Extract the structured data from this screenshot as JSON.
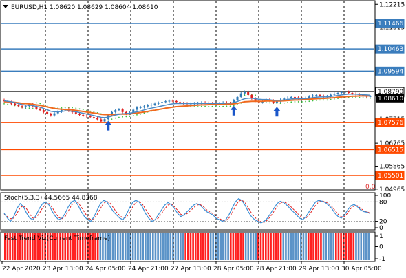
{
  "header": {
    "symbol_line": "EURUSD,H1  1.08620 1.08629 1.08604 1.08610"
  },
  "colors": {
    "background": "#ffffff",
    "frame": "#000000",
    "grid": "#000000",
    "candle_up": "#2f7ab8",
    "candle_down": "#e02020",
    "ma_fast": "#4b89c5",
    "ma_slow": "#f06a1e",
    "psar": "#3cc03c",
    "arrow": "#1a56c9",
    "level_blue": "#3a7dbd",
    "level_orange": "#ff4a00",
    "current_price": "#000000",
    "stoch_main": "#3b8fd6",
    "stoch_signal": "#e02020",
    "trend_up": "#5b93c8",
    "trend_down": "#ff2020"
  },
  "price_axis": {
    "ticks": [
      "1.12215",
      "1.11315",
      "1.10415",
      "1.09515",
      "1.08615",
      "1.07715",
      "1.06765",
      "1.05865",
      "1.04965"
    ],
    "tick_values": [
      1.12215,
      1.11315,
      1.10415,
      1.09515,
      1.08615,
      1.07715,
      1.06765,
      1.05865,
      1.04965
    ],
    "range": [
      1.0496,
      1.1233
    ],
    "levels": [
      {
        "label": "1.11466",
        "value": 1.11466,
        "kind": "blue"
      },
      {
        "label": "1.10463",
        "value": 1.10463,
        "kind": "blue"
      },
      {
        "label": "1.09594",
        "value": 1.09594,
        "kind": "blue"
      },
      {
        "label": "1.08790",
        "value": 1.0879,
        "kind": "black"
      },
      {
        "label": "1.07576",
        "value": 1.07576,
        "kind": "orange"
      },
      {
        "label": "1.06515",
        "value": 1.06515,
        "kind": "orange"
      },
      {
        "label": "1.05501",
        "value": 1.05501,
        "kind": "orange"
      }
    ],
    "current_price": {
      "label": "1.08610",
      "value": 1.0861
    }
  },
  "corner_mark": "0.0",
  "stoch": {
    "title": "Stoch(5,3,3) 44.5665 44.8368",
    "ticks": [
      "100",
      "80",
      "20",
      "0"
    ],
    "tick_values": [
      100,
      80,
      20,
      0
    ],
    "main": [
      45,
      30,
      20,
      35,
      60,
      75,
      65,
      45,
      30,
      25,
      40,
      60,
      75,
      80,
      70,
      50,
      35,
      25,
      30,
      45,
      65,
      80,
      85,
      70,
      50,
      35,
      25,
      20,
      35,
      55,
      75,
      85,
      80,
      65,
      50,
      40,
      30,
      25,
      40,
      60,
      78,
      85,
      80,
      65,
      45,
      30,
      20,
      25,
      40,
      55,
      70,
      78,
      72,
      60,
      45,
      35,
      40,
      50,
      60,
      70,
      75,
      70,
      60,
      50,
      45,
      40,
      30,
      25,
      20,
      25,
      40,
      60,
      80,
      90,
      85,
      70,
      50,
      35,
      25,
      20,
      15,
      20,
      30,
      45,
      60,
      75,
      82,
      78,
      70,
      60,
      50,
      40,
      30,
      25,
      35,
      50,
      65,
      80,
      85,
      82,
      78,
      70,
      60,
      45,
      35,
      30,
      40,
      55,
      68,
      72,
      65,
      55,
      50,
      48,
      44
    ],
    "signal": [
      42,
      35,
      28,
      30,
      45,
      62,
      68,
      58,
      42,
      30,
      32,
      45,
      62,
      74,
      75,
      62,
      46,
      32,
      28,
      35,
      52,
      70,
      80,
      78,
      64,
      48,
      34,
      25,
      28,
      42,
      60,
      76,
      82,
      76,
      62,
      48,
      38,
      30,
      32,
      45,
      64,
      78,
      82,
      74,
      58,
      42,
      28,
      24,
      30,
      44,
      58,
      70,
      74,
      66,
      54,
      42,
      38,
      44,
      52,
      62,
      70,
      72,
      66,
      56,
      49,
      44,
      36,
      29,
      23,
      22,
      30,
      46,
      66,
      82,
      86,
      78,
      62,
      46,
      33,
      24,
      18,
      17,
      24,
      36,
      50,
      65,
      76,
      80,
      76,
      68,
      58,
      48,
      38,
      30,
      30,
      40,
      54,
      70,
      80,
      83,
      80,
      75,
      66,
      54,
      42,
      34,
      35,
      46,
      60,
      68,
      68,
      60,
      53,
      50,
      45
    ]
  },
  "trend_panel": {
    "title": "Fast Trend Viz(Current Timeframe)",
    "ticks": [
      "1",
      "0",
      "-1"
    ],
    "tick_values": [
      1,
      0,
      -1
    ],
    "runs": [
      {
        "color": "down",
        "count": 38
      },
      {
        "color": "up",
        "count": 20
      },
      {
        "color": "up2",
        "count": 14
      },
      {
        "color": "down",
        "count": 10
      },
      {
        "color": "up",
        "count": 8
      },
      {
        "color": "down",
        "count": 6
      },
      {
        "color": "up",
        "count": 5
      },
      {
        "color": "down",
        "count": 10
      },
      {
        "color": "up",
        "count": 4
      },
      {
        "color": "up2",
        "count": 6
      },
      {
        "color": "down",
        "count": 6
      },
      {
        "color": "up",
        "count": 5
      },
      {
        "color": "down",
        "count": 8
      },
      {
        "color": "up",
        "count": 6
      }
    ]
  },
  "time_axis": {
    "labels": [
      "22 Apr 2020",
      "23 Apr 13:00",
      "24 Apr 05:00",
      "24 Apr 21:00",
      "27 Apr 13:00",
      "28 Apr 05:00",
      "28 Apr 21:00",
      "29 Apr 13:00",
      "30 Apr 05:00"
    ]
  },
  "chart_data": {
    "type": "candlestick",
    "symbol": "EURUSD",
    "timeframe": "H1",
    "ohlc_last": {
      "open": 1.0862,
      "high": 1.08629,
      "low": 1.08604,
      "close": 1.0861
    },
    "closes": [
      1.0842,
      1.0838,
      1.0832,
      1.0828,
      1.0822,
      1.0818,
      1.0822,
      1.0829,
      1.0821,
      1.0812,
      1.0806,
      1.0799,
      1.0791,
      1.0786,
      1.0794,
      1.0801,
      1.0806,
      1.0811,
      1.0804,
      1.0798,
      1.0793,
      1.0788,
      1.0785,
      1.0782,
      1.0779,
      1.0776,
      1.077,
      1.0762,
      1.0771,
      1.0786,
      1.0799,
      1.0806,
      1.0809,
      1.0799,
      1.0792,
      1.0797,
      1.0808,
      1.0817,
      1.0818,
      1.0821,
      1.0825,
      1.0828,
      1.0832,
      1.0835,
      1.0838,
      1.0841,
      1.0843,
      1.0842,
      1.0838,
      1.0834,
      1.0833,
      1.0831,
      1.0832,
      1.0833,
      1.0834,
      1.0836,
      1.0835,
      1.0833,
      1.0832,
      1.0831,
      1.0833,
      1.0836,
      1.0834,
      1.0832,
      1.0845,
      1.0858,
      1.0872,
      1.0878,
      1.0866,
      1.0852,
      1.0843,
      1.0837,
      1.0842,
      1.0848,
      1.0844,
      1.0836,
      1.0841,
      1.0847,
      1.0852,
      1.0855,
      1.0858,
      1.0856,
      1.0852,
      1.0849,
      1.0854,
      1.086,
      1.0864,
      1.0866,
      1.0862,
      1.0858,
      1.0861,
      1.0867,
      1.0871,
      1.0874,
      1.0877,
      1.0878,
      1.0874,
      1.0871,
      1.0868,
      1.0866,
      1.0862,
      1.0861,
      1.0861
    ],
    "ma_fast": [
      1.0843,
      1.0841,
      1.0839,
      1.0836,
      1.0832,
      1.0828,
      1.0826,
      1.0826,
      1.0824,
      1.0821,
      1.0818,
      1.0813,
      1.0808,
      1.0802,
      1.08,
      1.08,
      1.0801,
      1.0803,
      1.0803,
      1.0802,
      1.08,
      1.0797,
      1.0794,
      1.0791,
      1.0788,
      1.0785,
      1.0782,
      1.0778,
      1.0777,
      1.0779,
      1.0783,
      1.0787,
      1.079,
      1.0792,
      1.0793,
      1.0794,
      1.0797,
      1.08,
      1.0803,
      1.0807,
      1.0811,
      1.0814,
      1.0817,
      1.082,
      1.0823,
      1.0826,
      1.0829,
      1.0831,
      1.0832,
      1.0832,
      1.0832,
      1.0832,
      1.0832,
      1.0832,
      1.0832,
      1.0833,
      1.0833,
      1.0833,
      1.0833,
      1.0833,
      1.0833,
      1.0833,
      1.0834,
      1.0834,
      1.0836,
      1.084,
      1.0846,
      1.0851,
      1.0853,
      1.0853,
      1.0851,
      1.0849,
      1.0848,
      1.0848,
      1.0847,
      1.0845,
      1.0845,
      1.0845,
      1.0846,
      1.0848,
      1.085,
      1.0851,
      1.0851,
      1.0851,
      1.0852,
      1.0853,
      1.0855,
      1.0857,
      1.0858,
      1.0858,
      1.0858,
      1.086,
      1.0862,
      1.0864,
      1.0866,
      1.0868,
      1.0869,
      1.0869,
      1.0869,
      1.0868,
      1.0867,
      1.0866,
      1.0865
    ],
    "ma_slow": [
      1.0839,
      1.0839,
      1.0838,
      1.0837,
      1.0835,
      1.0833,
      1.0832,
      1.0831,
      1.0829,
      1.0827,
      1.0825,
      1.0822,
      1.0819,
      1.0816,
      1.0813,
      1.0811,
      1.081,
      1.0809,
      1.0808,
      1.0807,
      1.0805,
      1.0803,
      1.0801,
      1.0799,
      1.0797,
      1.0795,
      1.0793,
      1.079,
      1.0789,
      1.0789,
      1.0789,
      1.079,
      1.0791,
      1.0791,
      1.0791,
      1.0792,
      1.0793,
      1.0795,
      1.0797,
      1.0799,
      1.0801,
      1.0804,
      1.0806,
      1.0809,
      1.0811,
      1.0814,
      1.0816,
      1.0818,
      1.082,
      1.0821,
      1.0822,
      1.0823,
      1.0824,
      1.0825,
      1.0826,
      1.0827,
      1.0827,
      1.0828,
      1.0828,
      1.0829,
      1.0829,
      1.083,
      1.083,
      1.083,
      1.0831,
      1.0833,
      1.0836,
      1.0839,
      1.084,
      1.0841,
      1.0841,
      1.0841,
      1.0841,
      1.0842,
      1.0842,
      1.0842,
      1.0842,
      1.0842,
      1.0843,
      1.0844,
      1.0845,
      1.0846,
      1.0846,
      1.0847,
      1.0848,
      1.0849,
      1.085,
      1.0851,
      1.0852,
      1.0852,
      1.0853,
      1.0854,
      1.0855,
      1.0857,
      1.0858,
      1.0859,
      1.086,
      1.0861,
      1.0861,
      1.0862,
      1.0862,
      1.0862,
      1.0862
    ],
    "arrows_up_at": [
      29,
      64,
      76
    ]
  }
}
